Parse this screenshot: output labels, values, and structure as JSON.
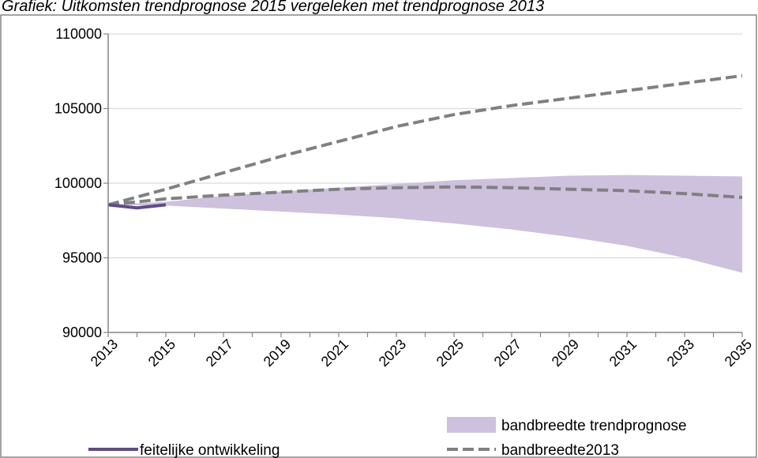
{
  "chart_data": {
    "type": "area",
    "title": "Grafiek: Uitkomsten trendprognose 2015 vergeleken met trendprognose 2013",
    "xlabel": "",
    "ylabel": "",
    "ylim": [
      90000,
      110000
    ],
    "xlim": [
      2013,
      2035
    ],
    "y_ticks": [
      "90000",
      "95000",
      "100000",
      "105000",
      "110000"
    ],
    "x_ticks": [
      "2013",
      "2015",
      "2017",
      "2019",
      "2021",
      "2023",
      "2025",
      "2027",
      "2029",
      "2031",
      "2033",
      "2035"
    ],
    "grid": true,
    "legend_position": "bottom",
    "colors": {
      "band": "#cdc1dd",
      "actual": "#5e4b8b",
      "band2013": "#808080",
      "grid": "#d9d9d9",
      "axis": "#868686"
    },
    "series": [
      {
        "name": "feitelijke ontwikkeling",
        "style": "solid",
        "x": [
          2013,
          2014,
          2015
        ],
        "values": [
          98550,
          98350,
          98550
        ]
      },
      {
        "name": "bandbreedte trendprognose",
        "style": "band",
        "x": [
          2013,
          2015,
          2017,
          2019,
          2021,
          2023,
          2025,
          2027,
          2029,
          2031,
          2033,
          2035
        ],
        "upper": [
          98550,
          98750,
          99150,
          99450,
          99700,
          99950,
          100200,
          100350,
          100500,
          100550,
          100500,
          100450
        ],
        "lower": [
          98550,
          98500,
          98300,
          98100,
          97900,
          97650,
          97300,
          96900,
          96400,
          95800,
          95000,
          94000
        ]
      },
      {
        "name": "bandbreedte2013",
        "style": "dashed",
        "lines": [
          {
            "x": [
              2013,
              2015,
              2017,
              2019,
              2021,
              2023,
              2025,
              2027,
              2029,
              2031,
              2033,
              2035
            ],
            "values": [
              98550,
              99600,
              100700,
              101800,
              102800,
              103800,
              104600,
              105200,
              105700,
              106200,
              106700,
              107200
            ]
          },
          {
            "x": [
              2013,
              2015,
              2017,
              2019,
              2021,
              2023,
              2025,
              2027,
              2029,
              2031,
              2033,
              2035
            ],
            "values": [
              98550,
              98950,
              99200,
              99400,
              99600,
              99700,
              99750,
              99700,
              99600,
              99500,
              99300,
              99050
            ]
          }
        ]
      }
    ]
  }
}
